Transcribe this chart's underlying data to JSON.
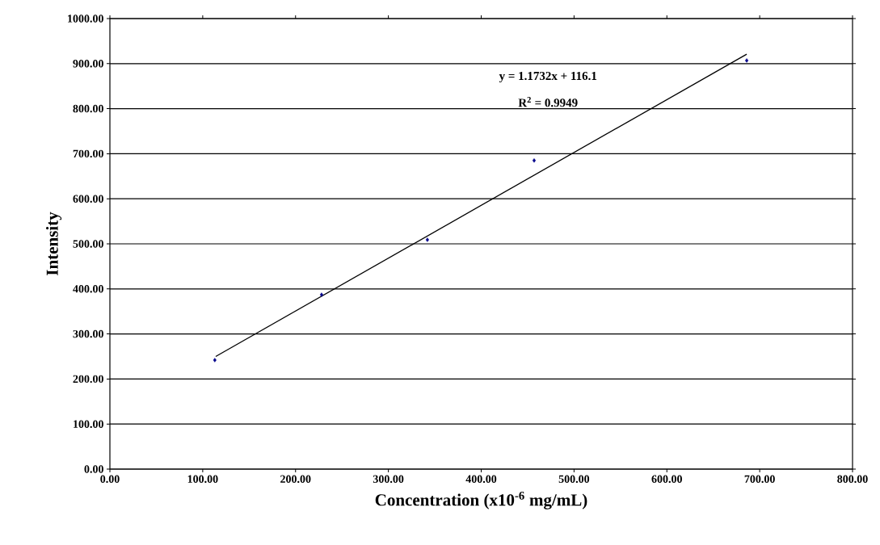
{
  "chart_data": {
    "type": "scatter",
    "xlabel": "Concentration (x10$^{-6}$ mg/mL)",
    "ylabel": "Intensity",
    "series": [
      {
        "color": "#00008b",
        "marker": "diamond",
        "x": [
          113,
          228,
          342,
          457,
          686
        ],
        "values": [
          242,
          387,
          509,
          685,
          907
        ]
      },
      {
        "type": "line",
        "color": "#000000",
        "marker": "none",
        "line_style": "solid",
        "x": [
          114,
          686
        ],
        "values": [
          250,
          921
        ]
      }
    ],
    "annotations": [
      "y = 1.1732x + 116.1",
      "R$^{2}$ = 0.9949"
    ],
    "xlim": [
      0,
      800
    ],
    "ylim": [
      0,
      1000
    ],
    "xticks": [
      {
        "value": 0,
        "label": "0.00"
      },
      {
        "value": 100,
        "label": "100.00"
      },
      {
        "value": 200,
        "label": "200.00"
      },
      {
        "value": 300,
        "label": "300.00"
      },
      {
        "value": 400,
        "label": "400.00"
      },
      {
        "value": 500,
        "label": "500.00"
      },
      {
        "value": 600,
        "label": "600.00"
      },
      {
        "value": 700,
        "label": "700.00"
      },
      {
        "value": 800,
        "label": "800.00"
      }
    ],
    "yticks": [
      {
        "value": 0,
        "label": "0.00"
      },
      {
        "value": 100,
        "label": "100.00"
      },
      {
        "value": 200,
        "label": "200.00"
      },
      {
        "value": 300,
        "label": "300.00"
      },
      {
        "value": 400,
        "label": "400.00"
      },
      {
        "value": 500,
        "label": "500.00"
      },
      {
        "value": 600,
        "label": "600.00"
      },
      {
        "value": 700,
        "label": "700.00"
      },
      {
        "value": 800,
        "label": "800.00"
      },
      {
        "value": 900,
        "label": "900.00"
      },
      {
        "value": 1000,
        "label": "1000.00"
      }
    ],
    "grid": "y"
  }
}
